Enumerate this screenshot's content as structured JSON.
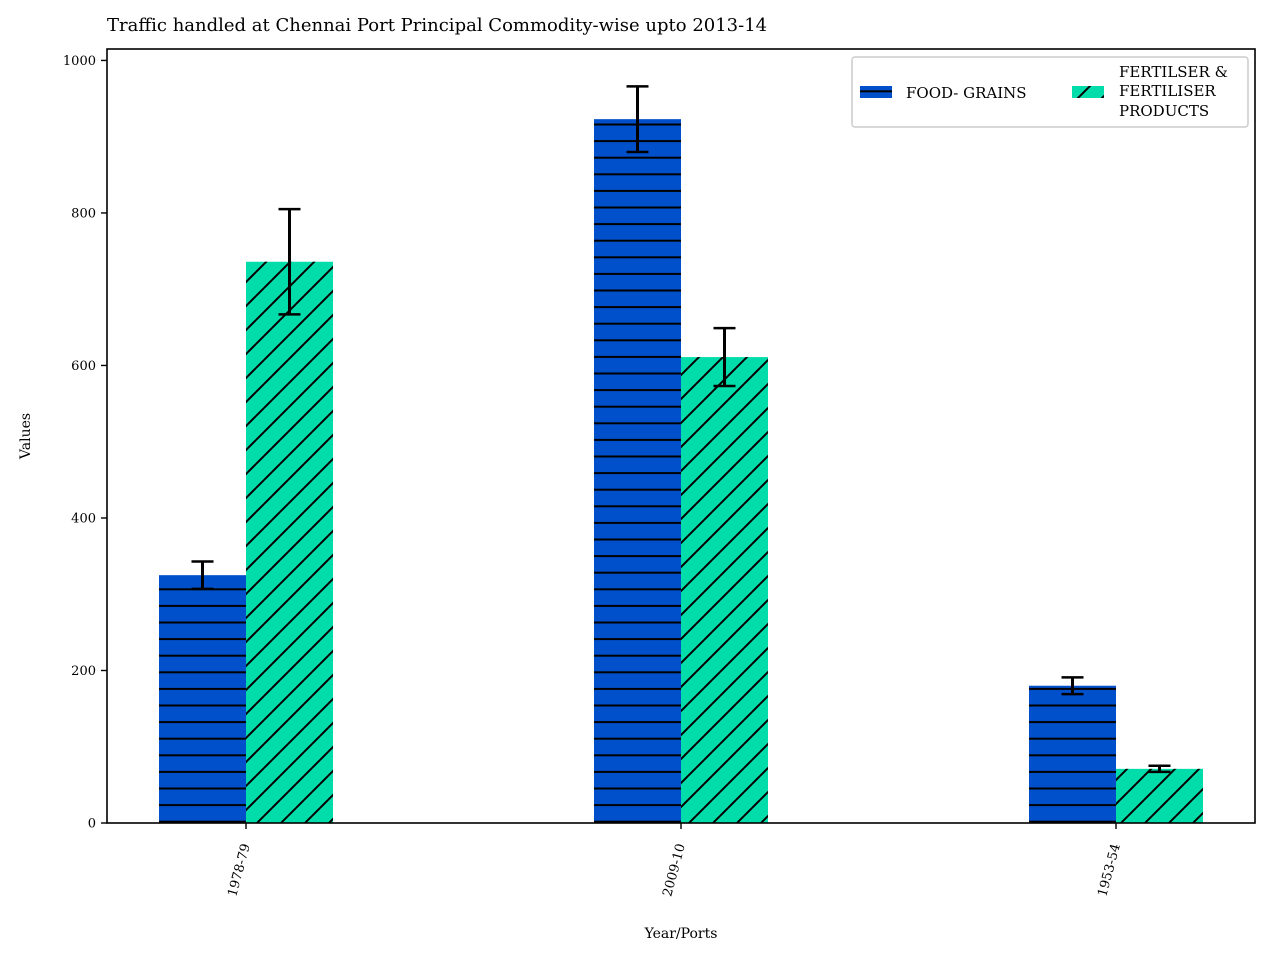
{
  "chart_data": {
    "type": "bar",
    "title": "Traffic handled at Chennai Port Principal Commodity-wise upto 2013-14",
    "xlabel": "Year/Ports",
    "ylabel": "Values",
    "categories": [
      "1978-79",
      "2009-10",
      "1953-54"
    ],
    "ylim": [
      0,
      1015
    ],
    "yticks": [
      0,
      200,
      400,
      600,
      800,
      1000
    ],
    "grid": false,
    "legend_position": "top-right",
    "series": [
      {
        "name": "FOOD- GRAINS",
        "color": "#0050cc",
        "hatch": "horizontal",
        "values": [
          325,
          923,
          180
        ],
        "errors": [
          18,
          43,
          11
        ]
      },
      {
        "name": "FERTILSER & FERTILISER PRODUCTS",
        "legend_lines": [
          "FERTILSER &",
          "FERTILISER",
          "PRODUCTS"
        ],
        "color": "#00ddaa",
        "hatch": "diagonal",
        "values": [
          736,
          611,
          71
        ],
        "errors": [
          69,
          38,
          4
        ]
      }
    ]
  }
}
